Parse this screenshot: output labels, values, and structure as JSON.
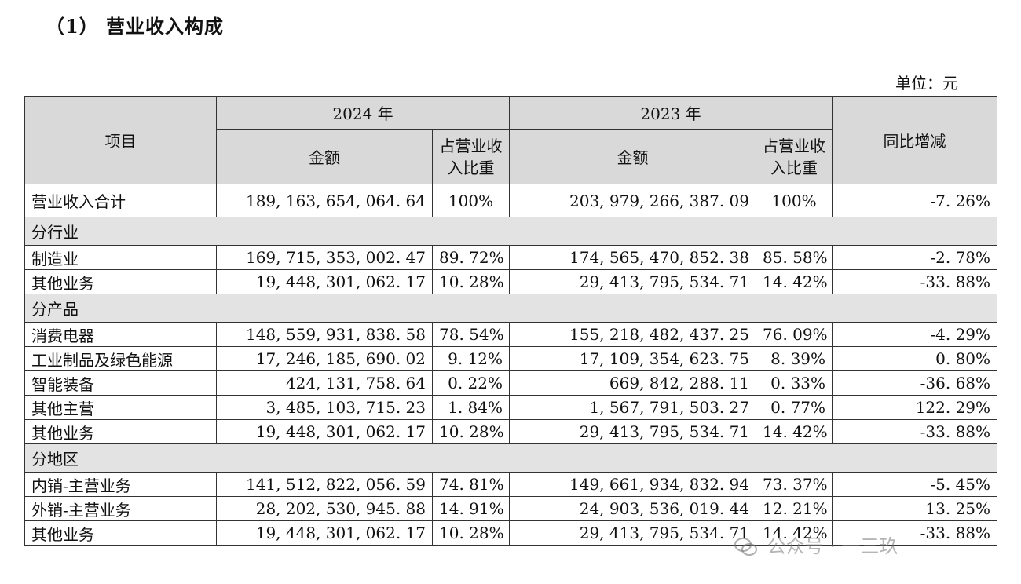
{
  "title": "（1） 营业收入构成",
  "unit": "单位：元",
  "header": {
    "item": "项目",
    "year2024": "2024 年",
    "year2023": "2023 年",
    "amount_2024": "金额",
    "ratio_2024": "占营业收入比重",
    "amount_2023": "金额",
    "ratio_2023": "占营业收入比重",
    "yoy": "同比增减"
  },
  "total": {
    "name": "营业收入合计",
    "amount_2024": "189, 163, 654, 064. 64",
    "ratio_2024": "100%",
    "amount_2023": "203, 979, 266, 387. 09",
    "ratio_2023": "100%",
    "yoy": "-7. 26%"
  },
  "groups": [
    {
      "label": "分行业",
      "rows": [
        {
          "name": "制造业",
          "amount_2024": "169, 715, 353, 002. 47",
          "ratio_2024": "89. 72%",
          "amount_2023": "174, 565, 470, 852. 38",
          "ratio_2023": "85. 58%",
          "yoy": "-2. 78%"
        },
        {
          "name": "其他业务",
          "amount_2024": "19, 448, 301, 062. 17",
          "ratio_2024": "10. 28%",
          "amount_2023": "29, 413, 795, 534. 71",
          "ratio_2023": "14. 42%",
          "yoy": "-33. 88%"
        }
      ]
    },
    {
      "label": "分产品",
      "rows": [
        {
          "name": "消费电器",
          "amount_2024": "148, 559, 931, 838. 58",
          "ratio_2024": "78. 54%",
          "amount_2023": "155, 218, 482, 437. 25",
          "ratio_2023": "76. 09%",
          "yoy": "-4. 29%"
        },
        {
          "name": "工业制品及绿色能源",
          "amount_2024": "17, 246, 185, 690. 02",
          "ratio_2024": "9. 12%",
          "amount_2023": "17, 109, 354, 623. 75",
          "ratio_2023": "8. 39%",
          "yoy": "0. 80%"
        },
        {
          "name": "智能装备",
          "amount_2024": "424, 131, 758. 64",
          "ratio_2024": "0. 22%",
          "amount_2023": "669, 842, 288. 11",
          "ratio_2023": "0. 33%",
          "yoy": "-36. 68%"
        },
        {
          "name": "其他主营",
          "amount_2024": "3, 485, 103, 715. 23",
          "ratio_2024": "1. 84%",
          "amount_2023": "1, 567, 791, 503. 27",
          "ratio_2023": "0. 77%",
          "yoy": "122. 29%"
        },
        {
          "name": "其他业务",
          "amount_2024": "19, 448, 301, 062. 17",
          "ratio_2024": "10. 28%",
          "amount_2023": "29, 413, 795, 534. 71",
          "ratio_2023": "14. 42%",
          "yoy": "-33. 88%"
        }
      ]
    },
    {
      "label": "分地区",
      "rows": [
        {
          "name": "内销-主营业务",
          "amount_2024": "141, 512, 822, 056. 59",
          "ratio_2024": "74. 81%",
          "amount_2023": "149, 661, 934, 832. 94",
          "ratio_2023": "73. 37%",
          "yoy": "-5. 45%"
        },
        {
          "name": "外销-主营业务",
          "amount_2024": "28, 202, 530, 945. 88",
          "ratio_2024": "14. 91%",
          "amount_2023": "24, 903, 536, 019. 44",
          "ratio_2023": "12. 21%",
          "yoy": "13. 25%"
        },
        {
          "name": "其他业务",
          "amount_2024": "19, 448, 301, 062. 17",
          "ratio_2024": "10. 28%",
          "amount_2023": "29, 413, 795, 534. 71",
          "ratio_2023": "14. 42%",
          "yoy": "-33. 88%"
        }
      ]
    }
  ],
  "watermark": "公众号 · 一三玖"
}
